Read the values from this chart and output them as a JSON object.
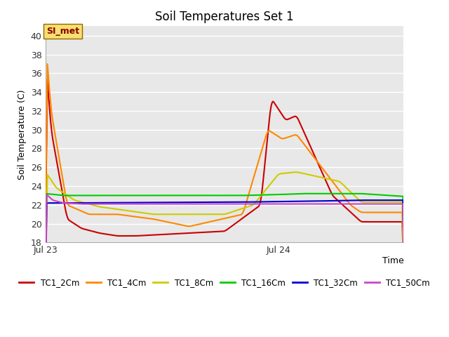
{
  "title": "Soil Temperatures Set 1",
  "xlabel": "Time",
  "ylabel": "Soil Temperature (C)",
  "ylim": [
    18,
    41
  ],
  "yticks": [
    18,
    20,
    22,
    24,
    26,
    28,
    30,
    32,
    34,
    36,
    38,
    40
  ],
  "fig_bg": "#ffffff",
  "plot_bg": "#e8e8e8",
  "grid_color": "#ffffff",
  "annotation_text": "SI_met",
  "series_colors": {
    "TC1_2Cm": "#cc0000",
    "TC1_4Cm": "#ff8800",
    "TC1_8Cm": "#cccc00",
    "TC1_16Cm": "#00cc00",
    "TC1_32Cm": "#0000cc",
    "TC1_50Cm": "#cc44cc"
  },
  "legend_colors": [
    "#cc0000",
    "#ff8800",
    "#cccc00",
    "#00cc00",
    "#0000cc",
    "#cc44cc"
  ],
  "legend_labels": [
    "TC1_2Cm",
    "TC1_4Cm",
    "TC1_8Cm",
    "TC1_16Cm",
    "TC1_32Cm",
    "TC1_50Cm"
  ],
  "xtick_positions": [
    0.0,
    0.65
  ],
  "xtick_labels": [
    "Jul 23",
    "Jul 24"
  ]
}
